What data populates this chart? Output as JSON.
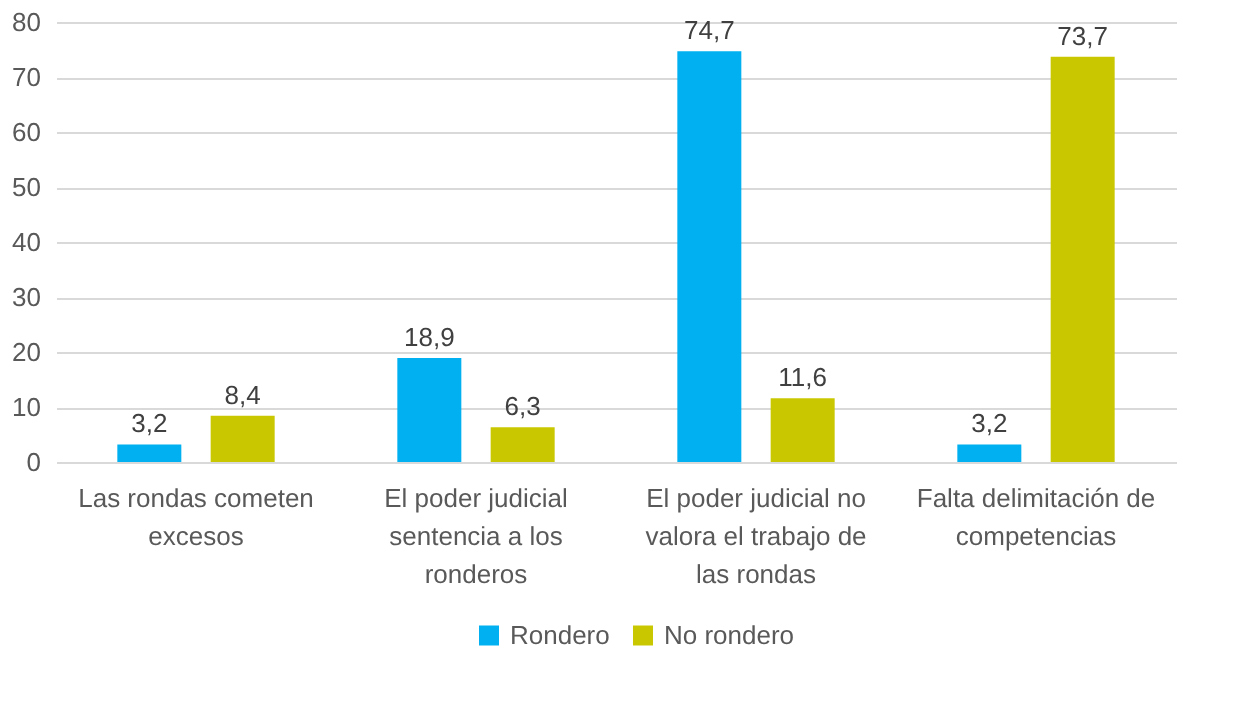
{
  "chart_data": {
    "type": "bar",
    "categories": [
      "Las rondas cometen excesos",
      "El poder judicial sentencia a los ronderos",
      "El poder judicial no valora el trabajo de las rondas",
      "Falta delimitación de competencias"
    ],
    "series": [
      {
        "name": "Rondero",
        "color": "#00b0f0",
        "values": [
          3.2,
          18.9,
          74.7,
          3.2
        ],
        "value_labels": [
          "3,2",
          "18,9",
          "74,7",
          "3,2"
        ]
      },
      {
        "name": "No rondero",
        "color": "#c9c800",
        "values": [
          8.4,
          6.3,
          11.6,
          73.7
        ],
        "value_labels": [
          "8,4",
          "6,3",
          "11,6",
          "73,7"
        ]
      }
    ],
    "ylim": [
      0,
      80
    ],
    "yticks": [
      0,
      10,
      20,
      30,
      40,
      50,
      60,
      70,
      80
    ],
    "grid": "y",
    "legend": "bottom"
  }
}
